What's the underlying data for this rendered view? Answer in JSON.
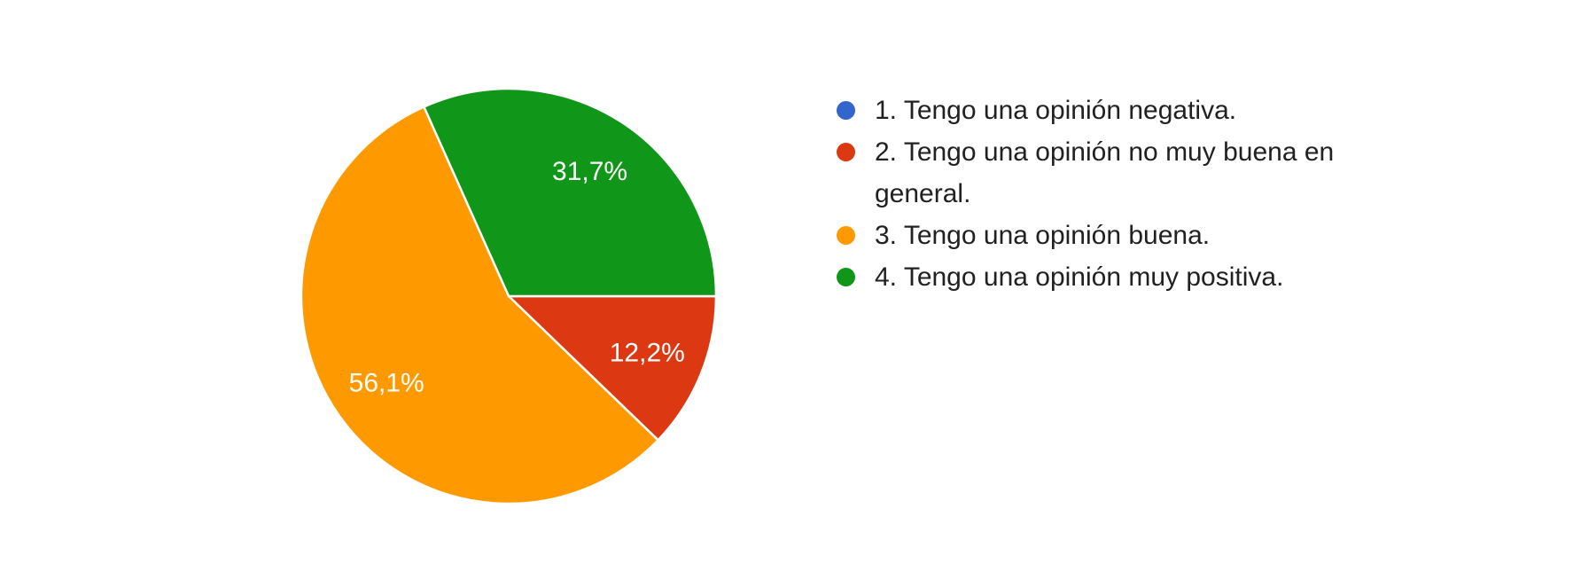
{
  "chart_data": {
    "type": "pie",
    "title": "",
    "legend_position": "right",
    "direction": "clockwise",
    "start_angle_clockwise_from_top_deg": 90,
    "slice_border_color": "#FFFFFF",
    "data_label_color": "#FFFFFF",
    "legend_text_color": "#212121",
    "slices": [
      {
        "label": "1. Tengo una opinión negativa.",
        "value_pct": 0,
        "color": "#3366CC",
        "data_label": ""
      },
      {
        "label": "2. Tengo una opinión no muy buena en general.",
        "value_pct": 12.2,
        "color": "#DC3912",
        "data_label": "12,2%"
      },
      {
        "label": "3. Tengo una opinión buena.",
        "value_pct": 56.1,
        "color": "#FF9900",
        "data_label": "56,1%"
      },
      {
        "label": "4. Tengo una opinión muy positiva.",
        "value_pct": 31.7,
        "color": "#109618",
        "data_label": "31,7%"
      }
    ]
  }
}
